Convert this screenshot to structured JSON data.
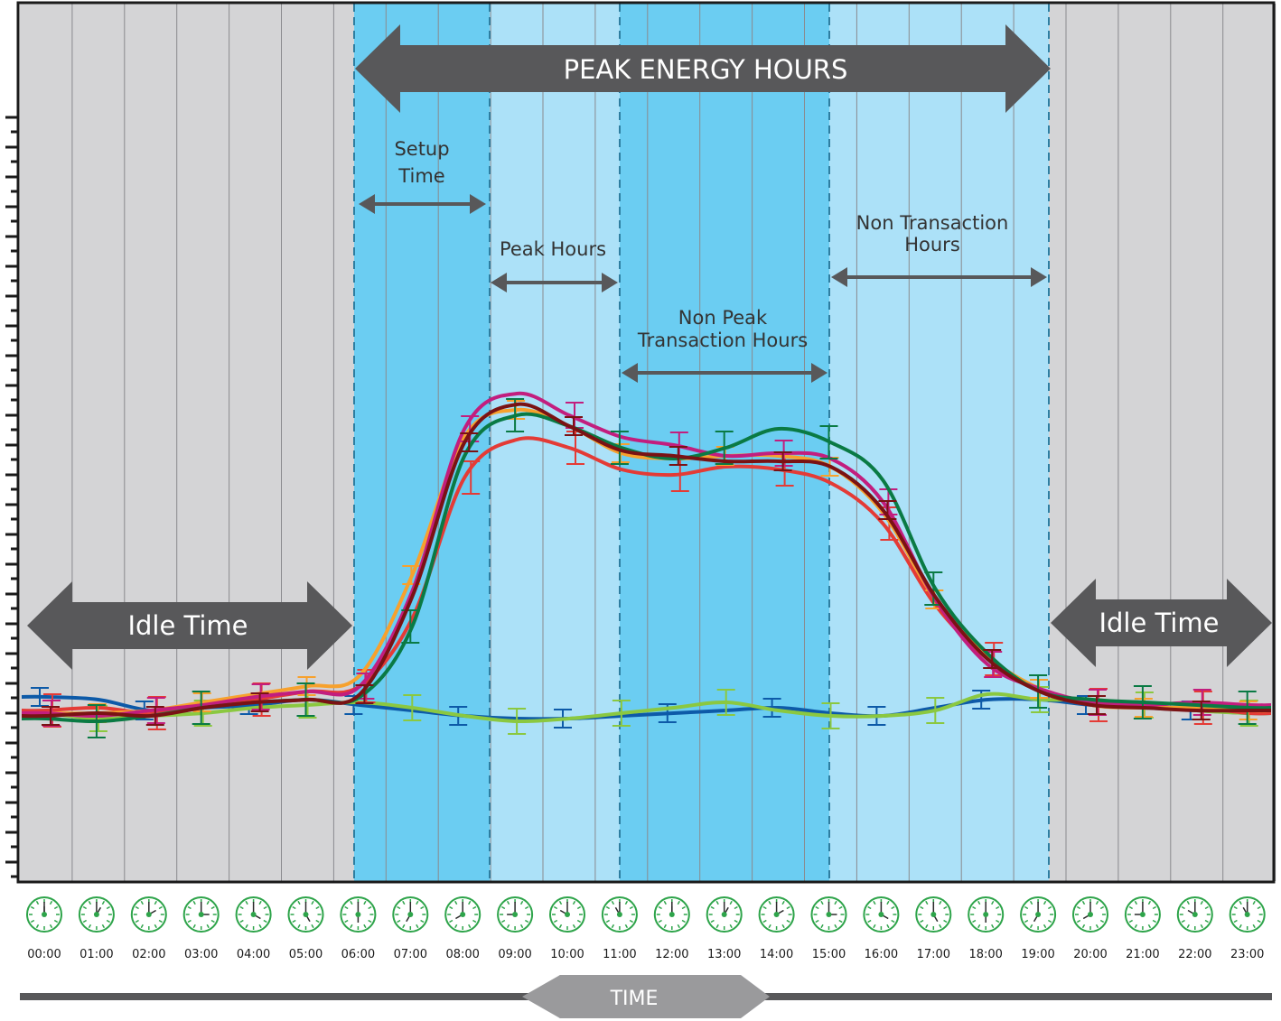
{
  "chart_data": {
    "type": "line",
    "title": "",
    "xlabel": "TIME",
    "ylabel": "",
    "x": [
      "00:00",
      "01:00",
      "02:00",
      "03:00",
      "04:00",
      "05:00",
      "06:00",
      "07:00",
      "08:00",
      "09:00",
      "10:00",
      "11:00",
      "12:00",
      "13:00",
      "14:00",
      "15:00",
      "16:00",
      "17:00",
      "18:00",
      "19:00",
      "20:00",
      "21:00",
      "22:00",
      "23:00"
    ],
    "ylim": [
      0,
      25
    ],
    "grid": true,
    "legend": "none",
    "colors": {
      "idle_band": "#d4d4d6",
      "dark_band": "#6bcdf2",
      "light_band": "#ace1f8",
      "arrow": "#58585a",
      "axis_line": "#58585a",
      "clock_face": "#2ea44a",
      "tick_label": "#1a1a1a"
    },
    "series": [
      {
        "color": "#0d5aa8",
        "values": [
          4.1,
          4.0,
          3.6,
          3.7,
          3.8,
          4.0,
          3.8,
          3.6,
          3.4,
          3.3,
          3.3,
          3.4,
          3.5,
          3.6,
          3.7,
          3.5,
          3.4,
          3.7,
          4.0,
          4.0,
          3.8,
          3.7,
          3.6,
          3.5
        ]
      },
      {
        "color": "#8bc840",
        "values": [
          3.5,
          3.3,
          3.4,
          3.5,
          3.7,
          3.8,
          3.9,
          3.7,
          3.4,
          3.2,
          3.3,
          3.5,
          3.7,
          3.9,
          3.6,
          3.4,
          3.4,
          3.6,
          4.2,
          4.0,
          4.0,
          3.8,
          3.6,
          3.5
        ]
      },
      {
        "color": "#e43b36",
        "values": [
          3.6,
          3.7,
          3.5,
          3.7,
          4.0,
          4.3,
          4.5,
          7.0,
          12.2,
          13.6,
          13.3,
          12.5,
          12.3,
          12.6,
          12.5,
          12.0,
          10.5,
          7.5,
          5.5,
          4.3,
          3.8,
          3.7,
          3.7,
          3.5
        ]
      },
      {
        "color": "#f7a12d",
        "values": [
          3.5,
          3.5,
          3.6,
          3.9,
          4.2,
          4.5,
          4.9,
          8.6,
          13.7,
          14.7,
          14.1,
          13.1,
          12.9,
          13.0,
          13.0,
          12.6,
          10.9,
          7.7,
          5.6,
          4.4,
          3.8,
          3.7,
          3.7,
          3.6
        ]
      },
      {
        "color": "#c21e7e",
        "values": [
          3.5,
          3.4,
          3.6,
          3.8,
          4.1,
          4.3,
          4.5,
          8.0,
          14.0,
          15.3,
          14.5,
          13.7,
          13.4,
          13.0,
          13.1,
          12.9,
          11.3,
          7.7,
          5.3,
          4.4,
          3.9,
          3.8,
          3.9,
          3.8
        ]
      },
      {
        "color": "#0a7a44",
        "values": [
          3.3,
          3.2,
          3.4,
          3.7,
          3.9,
          4.0,
          4.1,
          6.7,
          13.0,
          14.5,
          14.1,
          13.3,
          12.9,
          13.3,
          14.0,
          13.5,
          12.1,
          8.1,
          5.7,
          4.3,
          4.0,
          3.9,
          3.8,
          3.7
        ]
      },
      {
        "color": "#7a1214",
        "values": [
          3.4,
          3.5,
          3.4,
          3.7,
          3.9,
          4.0,
          4.2,
          7.8,
          13.5,
          14.9,
          14.1,
          13.2,
          13.0,
          12.8,
          12.8,
          12.6,
          11.0,
          7.8,
          5.5,
          4.3,
          3.8,
          3.7,
          3.6,
          3.6
        ]
      }
    ],
    "annotations": {
      "peak_energy": "PEAK ENERGY HOURS",
      "idle_left": "Idle Time",
      "idle_right": "Idle Time",
      "setup": [
        "Setup",
        "Time"
      ],
      "peak_hours": "Peak Hours",
      "non_peak": [
        "Non Peak",
        "Transaction Hours"
      ],
      "non_transaction": [
        "Non Transaction",
        "Hours"
      ],
      "time": "TIME"
    }
  }
}
